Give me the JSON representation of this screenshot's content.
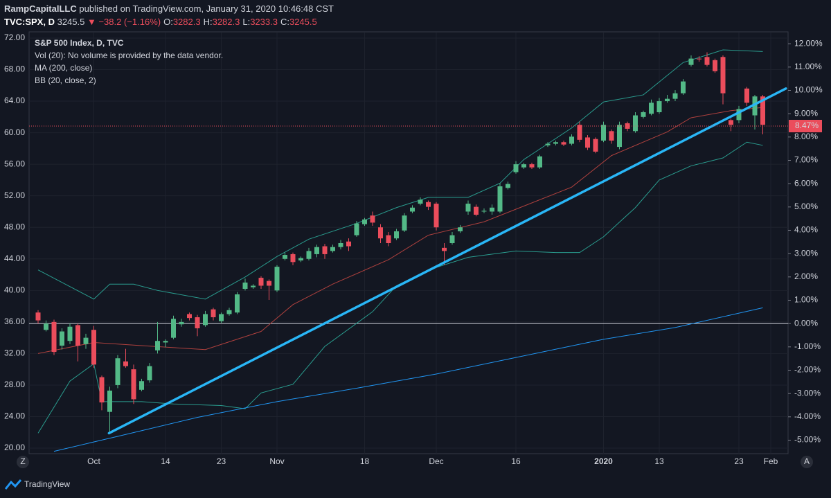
{
  "header": {
    "author": "RampCapitalLLC",
    "published": "published on TradingView.com, January 31, 2020 10:46:48 CST",
    "symbol": "TVC:SPX, D",
    "last": "3245.5",
    "change": "▼ −38.2 (−1.16%)",
    "ohlc": [
      [
        "O:",
        "3282.3"
      ],
      [
        "H:",
        "3282.3"
      ],
      [
        "L:",
        "3233.3"
      ],
      [
        "C:",
        "3245.5"
      ]
    ]
  },
  "ui": {
    "left_button": "Z",
    "right_button": "A",
    "brand": "TradingView"
  },
  "chart_data": {
    "type": "candlestick",
    "title": "S&P 500 Index, D, TVC",
    "volume_note": "Vol (20): No volume is provided by the data vendor.",
    "up_color": "#53b987",
    "down_color": "#eb4d5c",
    "grid": true,
    "categories": [
      null,
      null,
      null,
      null,
      null,
      null,
      null,
      "Oct",
      null,
      null,
      null,
      null,
      null,
      null,
      null,
      null,
      "14",
      null,
      null,
      null,
      null,
      null,
      null,
      "23",
      null,
      null,
      null,
      null,
      null,
      null,
      "Nov",
      null,
      null,
      null,
      null,
      null,
      null,
      null,
      null,
      null,
      null,
      "18",
      null,
      null,
      null,
      null,
      null,
      null,
      null,
      null,
      "Dec",
      null,
      null,
      null,
      null,
      null,
      null,
      null,
      null,
      null,
      "16",
      null,
      null,
      null,
      null,
      null,
      null,
      null,
      null,
      null,
      null,
      "2020",
      null,
      null,
      null,
      null,
      null,
      null,
      "13",
      null,
      null,
      null,
      null,
      null,
      null,
      null,
      null,
      null,
      "23",
      null,
      null,
      null,
      "Feb"
    ],
    "open": [
      37.2,
      35.0,
      36.0,
      33.0,
      33.6,
      35.6,
      33.2,
      35.0,
      29.0,
      24.6,
      28.0,
      31.0,
      30.0,
      27.4,
      28.6,
      32.4,
      33.4,
      34.0,
      35.7,
      37.0,
      36.6,
      35.6,
      37.6,
      36.1,
      37.0,
      37.2,
      40.2,
      40.4,
      41.6,
      41.2,
      40.0,
      44.0,
      44.6,
      43.8,
      44.0,
      44.6,
      45.6,
      45.0,
      45.5,
      46.2,
      47.0,
      48.4,
      49.5,
      48.0,
      47.0,
      46.6,
      47.6,
      50.0,
      51.0,
      51.2,
      51.0,
      45.4,
      46.0,
      47.5,
      50.0,
      50.6,
      50.0,
      50.0,
      50.0,
      53.0,
      55.0,
      55.6,
      56.0,
      55.6,
      58.4,
      58.6,
      58.8,
      58.6,
      61.0,
      59.4,
      59.2,
      59.0,
      60.2,
      58.2,
      61.2,
      60.2,
      62.0,
      62.4,
      62.6,
      64.0,
      64.3,
      65.0,
      68.6,
      69.4,
      69.6,
      69.2,
      69.6,
      61.6,
      61.6,
      65.6,
      62.2,
      64.6,
      null
    ],
    "high": [
      37.5,
      36.2,
      36.3,
      35.2,
      35.8,
      35.8,
      34.5,
      35.5,
      29.2,
      27.8,
      31.8,
      32.6,
      30.6,
      28.8,
      30.8,
      36.0,
      33.8,
      36.8,
      36.4,
      37.2,
      36.9,
      37.4,
      37.8,
      37.2,
      37.8,
      39.8,
      41.5,
      40.8,
      41.8,
      41.4,
      43.2,
      44.8,
      44.8,
      44.3,
      45.4,
      45.8,
      45.9,
      45.8,
      46.4,
      46.6,
      48.8,
      49.2,
      50.0,
      48.4,
      47.4,
      47.8,
      49.8,
      50.8,
      51.8,
      51.4,
      51.2,
      46.0,
      47.4,
      48.3,
      51.4,
      50.9,
      50.4,
      50.9,
      53.6,
      53.8,
      56.4,
      56.2,
      56.2,
      57.2,
      58.8,
      59.0,
      59.0,
      59.8,
      61.4,
      59.7,
      59.4,
      61.4,
      60.4,
      61.4,
      61.4,
      62.6,
      62.8,
      64.2,
      64.4,
      64.8,
      65.4,
      66.8,
      69.8,
      69.7,
      70.2,
      69.4,
      69.8,
      61.8,
      63.4,
      65.8,
      64.8,
      64.8,
      null
    ],
    "low": [
      35.8,
      34.8,
      31.8,
      32.5,
      33.2,
      31.0,
      32.6,
      30.2,
      24.8,
      22.0,
      27.6,
      30.2,
      25.6,
      27.2,
      28.3,
      32.0,
      32.8,
      33.8,
      35.4,
      36.2,
      34.2,
      35.4,
      36.2,
      35.9,
      36.8,
      37.0,
      40.0,
      40.2,
      40.2,
      38.8,
      39.8,
      43.8,
      43.2,
      43.6,
      43.8,
      44.2,
      44.0,
      44.8,
      45.2,
      45.0,
      46.8,
      48.2,
      48.2,
      46.0,
      45.6,
      46.4,
      47.4,
      49.8,
      50.8,
      50.2,
      47.6,
      43.2,
      45.8,
      47.3,
      49.6,
      49.4,
      49.8,
      49.6,
      49.8,
      52.8,
      54.8,
      55.4,
      55.4,
      55.4,
      58.2,
      58.4,
      58.3,
      58.4,
      58.8,
      57.8,
      57.4,
      58.8,
      58.6,
      57.9,
      60.2,
      60.0,
      61.8,
      62.2,
      62.4,
      63.8,
      64.0,
      64.8,
      68.4,
      69.0,
      68.4,
      67.6,
      63.6,
      60.2,
      61.2,
      63.4,
      60.4,
      59.8,
      null
    ],
    "close": [
      36.2,
      35.8,
      32.2,
      34.8,
      35.4,
      33.0,
      34.0,
      30.6,
      25.8,
      27.3,
      31.4,
      30.4,
      26.2,
      28.5,
      30.4,
      33.6,
      33.6,
      36.4,
      36.0,
      36.5,
      35.2,
      37.0,
      36.6,
      37.0,
      37.5,
      39.5,
      41.0,
      40.6,
      40.6,
      40.6,
      43.0,
      44.5,
      43.6,
      44.1,
      45.0,
      45.5,
      44.6,
      45.5,
      46.0,
      45.6,
      48.5,
      49.0,
      48.6,
      46.6,
      46.0,
      47.5,
      49.5,
      50.5,
      51.5,
      50.6,
      48.0,
      45.0,
      47.0,
      48.0,
      51.0,
      49.6,
      50.1,
      50.5,
      53.2,
      53.5,
      56.0,
      56.0,
      55.6,
      57.0,
      58.6,
      58.8,
      58.5,
      59.5,
      59.1,
      58.1,
      57.6,
      61.0,
      59.0,
      61.0,
      60.5,
      62.2,
      62.6,
      63.8,
      64.0,
      64.3,
      65.0,
      66.5,
      69.4,
      69.3,
      68.6,
      67.8,
      65.0,
      61.0,
      63.0,
      63.8,
      64.6,
      61.0,
      null
    ],
    "ma": {
      "name": "MA (200, close)",
      "color": "#2196f3",
      "x": [
        2,
        10,
        20,
        30,
        40,
        50,
        60,
        71,
        80,
        91
      ],
      "values": [
        19.6,
        21.5,
        23.9,
        25.9,
        27.6,
        29.4,
        31.5,
        33.8,
        35.3,
        37.8
      ]
    },
    "bollinger": {
      "name": "BB (20, close, 2)",
      "band_color": "#2a9d8f",
      "basis_color": "#b0413e",
      "upper": {
        "x": [
          0,
          7,
          9,
          12,
          15,
          21,
          26,
          30,
          34,
          40,
          45,
          49,
          54,
          58,
          61,
          67,
          71,
          76,
          81,
          86,
          91
        ],
        "values": [
          42.6,
          38.9,
          40.8,
          40.8,
          40.0,
          38.9,
          41.7,
          44.3,
          46.5,
          48.5,
          50.5,
          51.8,
          51.8,
          53.6,
          56.6,
          60.6,
          63.9,
          64.8,
          68.9,
          70.5,
          70.3
        ]
      },
      "basis": {
        "x": [
          0,
          7,
          13,
          21,
          28,
          32,
          37,
          44,
          49,
          56,
          61,
          67,
          72,
          79,
          82,
          87,
          91
        ],
        "values": [
          32.0,
          33.4,
          33.0,
          32.5,
          34.8,
          38.2,
          40.8,
          43.9,
          47.0,
          48.7,
          50.7,
          53.1,
          57.1,
          60.1,
          61.9,
          62.8,
          63.2
        ]
      },
      "lower": {
        "x": [
          0,
          4,
          7,
          8,
          13,
          17,
          23,
          26,
          28,
          32,
          36,
          42,
          45,
          49,
          54,
          60,
          65,
          68,
          71,
          75,
          78,
          82,
          86,
          89,
          91
        ],
        "values": [
          21.9,
          28.5,
          30.7,
          25.9,
          25.9,
          25.6,
          25.4,
          25.0,
          27.0,
          28.1,
          32.9,
          37.3,
          40.6,
          42.6,
          44.2,
          45.0,
          44.8,
          44.8,
          46.8,
          50.5,
          54.0,
          55.8,
          56.8,
          58.8,
          58.4
        ]
      }
    },
    "trendline": {
      "color": "#29b6f6",
      "x": [
        8.9,
        93.9
      ],
      "values": [
        21.9,
        65.6
      ]
    },
    "zero_line": 0,
    "price_line": {
      "value": 8.47,
      "label": "8.47%",
      "color": "#eb4d5c"
    },
    "ylim": [
      19.3,
      72.7
    ],
    "yticks": [
      {
        "value": 72,
        "label": "72.00"
      },
      {
        "value": 68,
        "label": "68.00"
      },
      {
        "value": 64,
        "label": "64.00"
      },
      {
        "value": 60,
        "label": "60.00"
      },
      {
        "value": 56,
        "label": "56.00"
      },
      {
        "value": 52,
        "label": "52.00"
      },
      {
        "value": 48,
        "label": "48.00"
      },
      {
        "value": 44,
        "label": "44.00"
      },
      {
        "value": 40,
        "label": "40.00"
      },
      {
        "value": 36,
        "label": "36.00"
      },
      {
        "value": 32,
        "label": "32.00"
      },
      {
        "value": 28,
        "label": "28.00"
      },
      {
        "value": 24,
        "label": "24.00"
      },
      {
        "value": 20,
        "label": "20.00"
      }
    ],
    "y2lim": [
      -5.58,
      12.48
    ],
    "y2ticks": [
      {
        "value": 12,
        "label": "12.00%"
      },
      {
        "value": 11,
        "label": "11.00%"
      },
      {
        "value": 10,
        "label": "10.00%"
      },
      {
        "value": 9,
        "label": "9.00%"
      },
      {
        "value": 8,
        "label": "8.00%"
      },
      {
        "value": 7,
        "label": "7.00%"
      },
      {
        "value": 6,
        "label": "6.00%"
      },
      {
        "value": 5,
        "label": "5.00%"
      },
      {
        "value": 4,
        "label": "4.00%"
      },
      {
        "value": 3,
        "label": "3.00%"
      },
      {
        "value": 2,
        "label": "2.00%"
      },
      {
        "value": 1,
        "label": "1.00%"
      },
      {
        "value": 0,
        "label": "0.00%"
      },
      {
        "value": -1,
        "label": "-1.00%"
      },
      {
        "value": -2,
        "label": "-2.00%"
      },
      {
        "value": -3,
        "label": "-3.00%"
      },
      {
        "value": -4,
        "label": "-4.00%"
      },
      {
        "value": -5,
        "label": "-5.00%"
      }
    ]
  }
}
